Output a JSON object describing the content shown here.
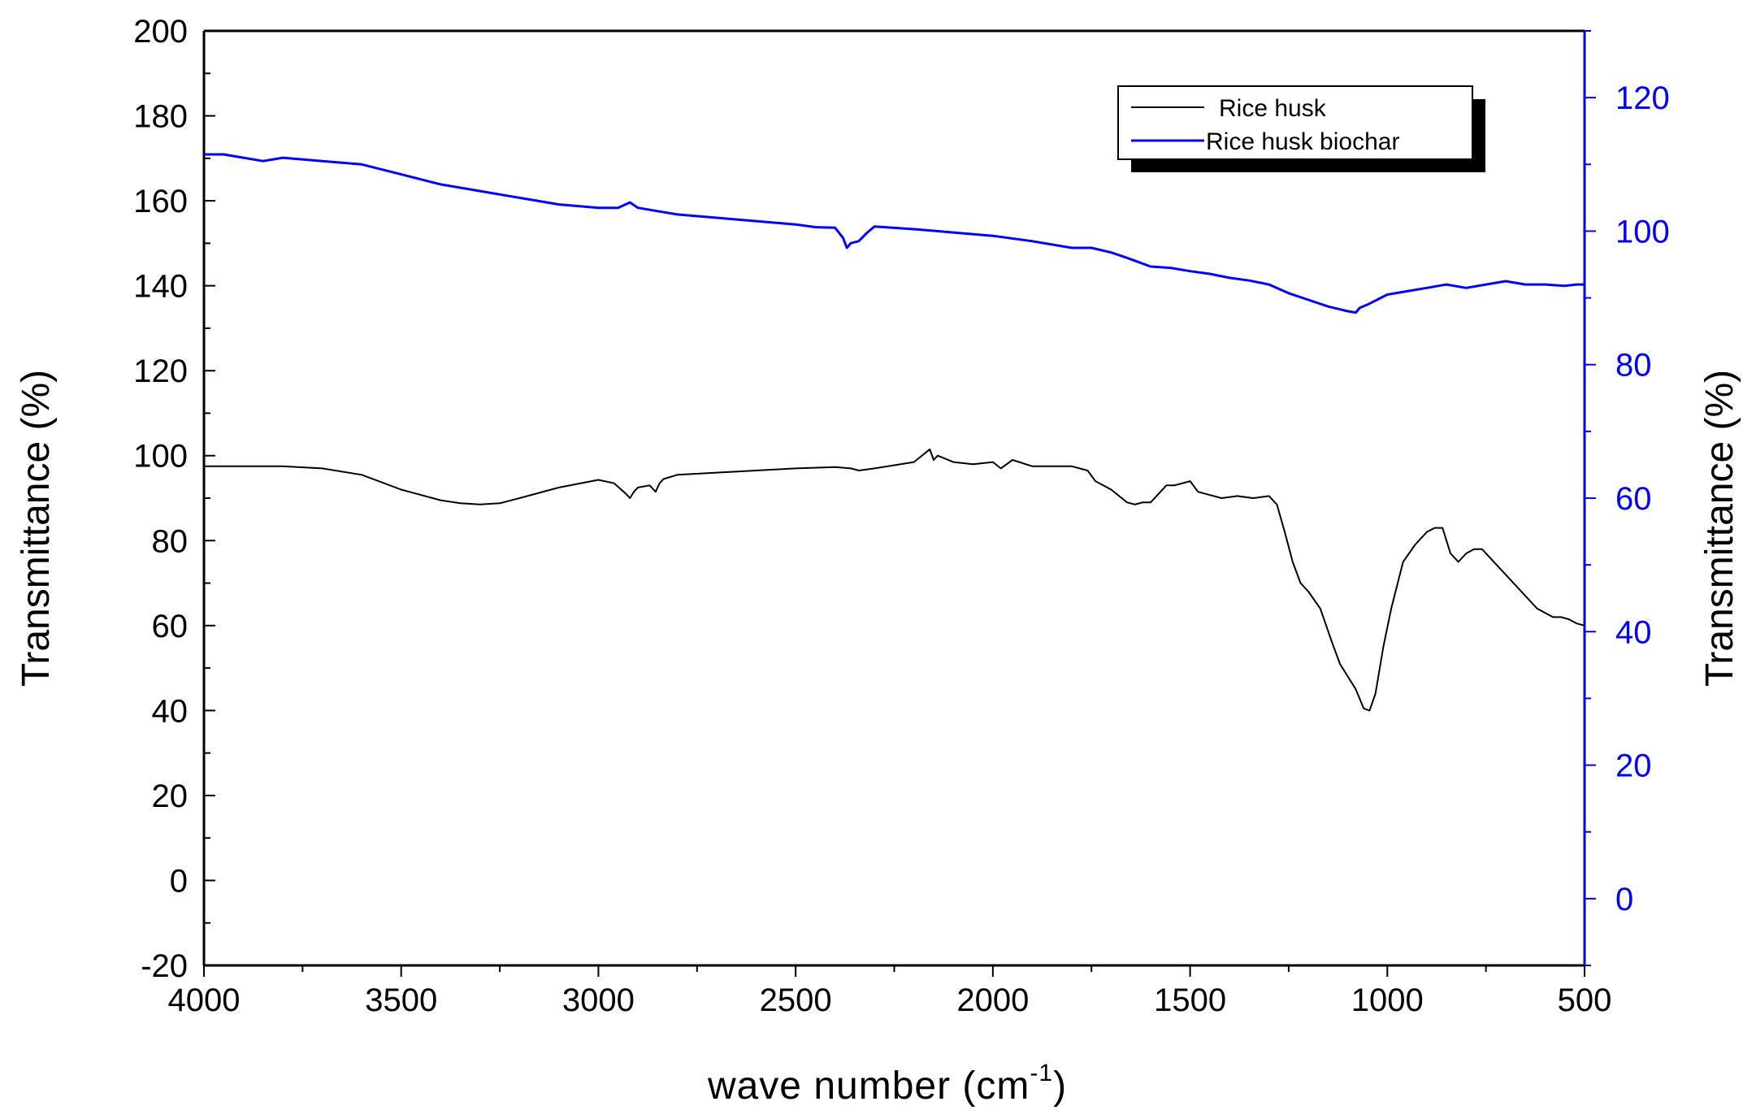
{
  "chart_data": {
    "type": "line",
    "title": "",
    "xlabel": "wave number (cm",
    "xlabel_sup": "-1",
    "xlabel_end": ")",
    "ylabel_left": "Transmittance (%)",
    "ylabel_right": "Transmittance (%)",
    "xlim": [
      4000,
      500
    ],
    "ylim_left": [
      -20,
      200
    ],
    "ylim_right": [
      -10,
      130
    ],
    "x_ticks": [
      "4000",
      "3500",
      "3000",
      "2500",
      "2000",
      "1500",
      "1000",
      "500"
    ],
    "y_left_ticks": [
      "200",
      "180",
      "160",
      "140",
      "120",
      "100",
      "80",
      "60",
      "40",
      "20",
      "0",
      "-20"
    ],
    "y_right_ticks": [
      "120",
      "100",
      "80",
      "60",
      "40",
      "20",
      "0"
    ],
    "colors": {
      "left_axis": "#000000",
      "right_axis": "#0000ff"
    },
    "legend": {
      "position": "top-right",
      "entries": [
        "Rice husk",
        "Rice husk biochar"
      ]
    },
    "series": [
      {
        "name": "Rice husk",
        "axis": "left",
        "color": "#000000",
        "x": [
          4000,
          3800,
          3700,
          3600,
          3500,
          3400,
          3350,
          3300,
          3250,
          3200,
          3100,
          3000,
          2960,
          2930,
          2920,
          2910,
          2900,
          2870,
          2855,
          2845,
          2835,
          2800,
          2700,
          2600,
          2500,
          2400,
          2360,
          2340,
          2300,
          2200,
          2160,
          2150,
          2140,
          2100,
          2050,
          2000,
          1980,
          1950,
          1900,
          1800,
          1760,
          1740,
          1700,
          1660,
          1640,
          1620,
          1600,
          1580,
          1560,
          1540,
          1500,
          1480,
          1460,
          1420,
          1380,
          1340,
          1300,
          1280,
          1260,
          1240,
          1220,
          1200,
          1170,
          1140,
          1120,
          1100,
          1080,
          1060,
          1045,
          1030,
          1010,
          990,
          960,
          930,
          900,
          880,
          860,
          840,
          820,
          800,
          780,
          760,
          740,
          700,
          660,
          620,
          580,
          560,
          540,
          520,
          500
        ],
        "y": [
          97.5,
          97.5,
          97,
          95.5,
          92,
          89.5,
          88.8,
          88.5,
          88.8,
          90,
          92.5,
          94.3,
          93.5,
          91,
          90,
          91.5,
          92.5,
          93,
          91.5,
          93.5,
          94.5,
          95.5,
          96,
          96.5,
          97,
          97.3,
          97,
          96.5,
          97,
          98.5,
          101.5,
          99,
          100,
          98.5,
          98,
          98.5,
          97,
          99,
          97.5,
          97.5,
          96.5,
          94,
          92,
          89,
          88.5,
          89,
          89,
          91,
          93,
          93,
          94,
          91.5,
          91,
          90,
          90.5,
          90,
          90.5,
          88.5,
          82,
          75,
          70,
          68,
          64,
          56,
          51,
          48,
          45,
          40.5,
          40,
          44,
          55,
          64,
          75,
          79,
          82,
          83,
          83,
          77,
          75,
          77,
          78,
          78,
          76,
          72,
          68,
          64,
          62,
          62,
          61.5,
          60.5,
          60
        ]
      },
      {
        "name": "Rice husk biochar",
        "axis": "right",
        "color": "#0000ff",
        "x": [
          4000,
          3950,
          3900,
          3850,
          3800,
          3700,
          3600,
          3500,
          3400,
          3300,
          3200,
          3100,
          3000,
          2950,
          2920,
          2900,
          2850,
          2800,
          2700,
          2600,
          2500,
          2450,
          2400,
          2380,
          2370,
          2360,
          2340,
          2320,
          2300,
          2200,
          2100,
          2000,
          1900,
          1800,
          1750,
          1700,
          1660,
          1600,
          1550,
          1500,
          1450,
          1400,
          1350,
          1300,
          1250,
          1200,
          1150,
          1100,
          1080,
          1070,
          1050,
          1000,
          950,
          900,
          850,
          800,
          750,
          700,
          650,
          600,
          550,
          520,
          500
        ],
        "y": [
          111.5,
          111.5,
          111,
          110.5,
          111,
          110.5,
          110,
          108.5,
          107,
          106,
          105,
          104,
          103.5,
          103.5,
          104.3,
          103.5,
          103,
          102.5,
          102,
          101.5,
          101,
          100.6,
          100.5,
          99,
          97.5,
          98.2,
          98.5,
          99.7,
          100.7,
          100.3,
          99.8,
          99.3,
          98.5,
          97.5,
          97.5,
          96.8,
          96,
          94.7,
          94.5,
          94,
          93.6,
          93,
          92.6,
          92,
          90.7,
          89.7,
          88.7,
          88,
          87.8,
          88.5,
          89,
          90.5,
          91,
          91.5,
          92,
          91.5,
          92,
          92.5,
          92,
          92,
          91.8,
          92,
          92
        ]
      }
    ]
  }
}
